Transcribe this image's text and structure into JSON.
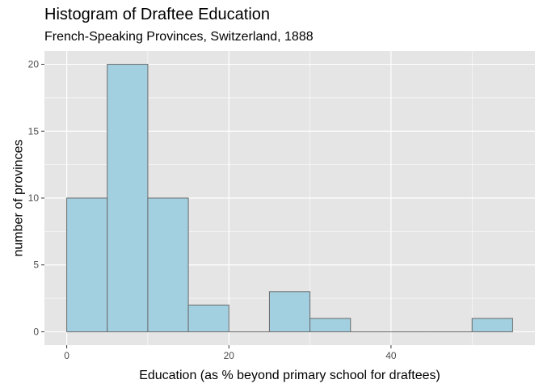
{
  "chart_data": {
    "type": "bar",
    "title": "Histogram of Draftee Education",
    "subtitle": "French-Speaking Provinces, Switzerland, 1888",
    "xlabel": "Education (as % beyond primary school for draftees)",
    "ylabel": "number of provinces",
    "bin_width": 5,
    "bins": [
      {
        "start": 0,
        "end": 5,
        "count": 10
      },
      {
        "start": 5,
        "end": 10,
        "count": 20
      },
      {
        "start": 10,
        "end": 15,
        "count": 10
      },
      {
        "start": 15,
        "end": 20,
        "count": 2
      },
      {
        "start": 20,
        "end": 25,
        "count": 0
      },
      {
        "start": 25,
        "end": 30,
        "count": 3
      },
      {
        "start": 30,
        "end": 35,
        "count": 1
      },
      {
        "start": 35,
        "end": 40,
        "count": 0
      },
      {
        "start": 40,
        "end": 45,
        "count": 0
      },
      {
        "start": 45,
        "end": 50,
        "count": 0
      },
      {
        "start": 50,
        "end": 55,
        "count": 1
      }
    ],
    "x_ticks": [
      0,
      20,
      40
    ],
    "y_ticks": [
      0,
      5,
      10,
      15,
      20
    ],
    "xlim": [
      -2.75,
      57.75
    ],
    "ylim": [
      -1,
      21
    ],
    "grid": true,
    "colors": {
      "panel_background": "#e5e5e5",
      "gridline": "#ffffff",
      "bar_fill": "#a2d0e1",
      "bar_outline": "#6b6b6b"
    }
  }
}
